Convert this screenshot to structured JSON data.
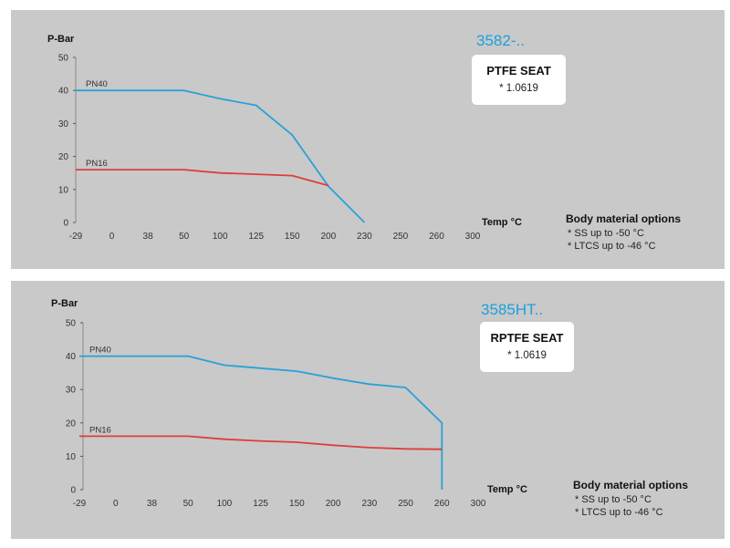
{
  "chart_data": [
    {
      "type": "line",
      "model": "3582-..",
      "seat_title": "PTFE SEAT",
      "seat_material": "* 1.0619",
      "ylabel": "P-Bar",
      "xlabel": "Temp °C",
      "categories": [
        "-29",
        "0",
        "38",
        "50",
        "100",
        "125",
        "150",
        "200",
        "230",
        "250",
        "260",
        "300"
      ],
      "ylim": [
        0,
        50
      ],
      "yticks": [
        0,
        10,
        20,
        30,
        40,
        50
      ],
      "series": [
        {
          "name": "PN40",
          "color": "#2aa0d8",
          "x": [
            -29,
            0,
            38,
            50,
            100,
            125,
            150,
            200,
            230
          ],
          "y": [
            40,
            40,
            40,
            40,
            37.5,
            35.5,
            26.5,
            11,
            0
          ]
        },
        {
          "name": "PN16",
          "color": "#e03c3c",
          "x": [
            -29,
            0,
            38,
            50,
            100,
            125,
            150,
            200
          ],
          "y": [
            16,
            16,
            16,
            16,
            15,
            14.6,
            14.2,
            11.2
          ]
        }
      ],
      "notes_title": "Body material options",
      "notes": [
        "* SS up to -50 °C",
        "* LTCS up to -46 °C"
      ]
    },
    {
      "type": "line",
      "model": "3585HT..",
      "seat_title": "RPTFE SEAT",
      "seat_material": "* 1.0619",
      "ylabel": "P-Bar",
      "xlabel": "Temp °C",
      "categories": [
        "-29",
        "0",
        "38",
        "50",
        "100",
        "125",
        "150",
        "200",
        "230",
        "250",
        "260",
        "300"
      ],
      "ylim": [
        0,
        50
      ],
      "yticks": [
        0,
        10,
        20,
        30,
        40,
        50
      ],
      "series": [
        {
          "name": "PN40",
          "color": "#2aa0d8",
          "x": [
            -29,
            0,
            38,
            50,
            100,
            125,
            150,
            200,
            230,
            250,
            260,
            260
          ],
          "y": [
            40,
            40,
            40,
            40,
            37.3,
            36.4,
            35.5,
            33.4,
            31.6,
            30.6,
            20,
            0
          ]
        },
        {
          "name": "PN16",
          "color": "#e03c3c",
          "x": [
            -29,
            0,
            38,
            50,
            100,
            125,
            150,
            200,
            230,
            250,
            260
          ],
          "y": [
            16,
            16,
            16,
            16,
            15.1,
            14.6,
            14.2,
            13.3,
            12.6,
            12.2,
            12.1
          ]
        }
      ],
      "notes_title": "Body material options",
      "notes": [
        "* SS up to -50 °C",
        "* LTCS up to -46 °C"
      ]
    }
  ]
}
